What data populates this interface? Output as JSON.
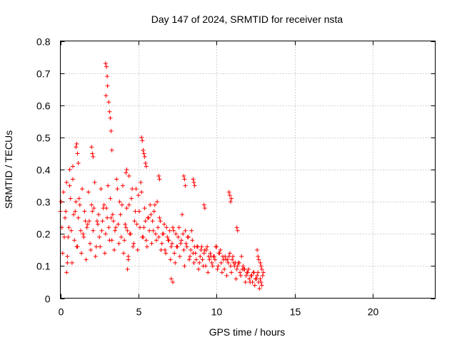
{
  "chart_data": {
    "type": "scatter",
    "title": "Day 147 of 2024, SRMTID for receiver nsta",
    "xlabel": "GPS time / hours",
    "ylabel": "SRMTID / TECUs",
    "xlim": [
      0,
      24
    ],
    "ylim": [
      0,
      0.8
    ],
    "grid": true,
    "marker": "+",
    "marker_color": "#ff0000",
    "x_ticks": [
      0,
      5,
      10,
      15,
      20
    ],
    "x_tick_labels": [
      "0",
      "5",
      "10",
      "15",
      "20"
    ],
    "y_ticks": [
      0,
      0.1,
      0.2,
      0.3,
      0.4,
      0.5,
      0.6,
      0.7,
      0.8
    ],
    "y_tick_labels": [
      "0",
      "0.1",
      "0.2",
      "0.3",
      "0.4",
      "0.5",
      "0.6",
      "0.7",
      "0.8"
    ],
    "series": [
      {
        "name": "SRMTID",
        "x": [
          0.0,
          0.2,
          0.4,
          0.6,
          0.8,
          1.0,
          1.2,
          1.4,
          1.6,
          1.8,
          2.0,
          2.2,
          2.4,
          2.6,
          2.8,
          3.0,
          3.2,
          3.4,
          3.6,
          3.8,
          4.0,
          4.2,
          4.4,
          4.6,
          4.8,
          5.0,
          5.2,
          5.4,
          5.6,
          5.8,
          6.0,
          6.2,
          6.4,
          6.6,
          6.8,
          7.0,
          7.2,
          7.4,
          7.6,
          7.8,
          8.0,
          8.2,
          8.4,
          8.6,
          8.8,
          9.0,
          9.2,
          9.4,
          9.6,
          9.8,
          10.0,
          10.2,
          10.4,
          10.6,
          10.8,
          11.0,
          11.2,
          11.4,
          11.6,
          11.8,
          12.0,
          12.2,
          12.4,
          12.6,
          12.8,
          13.0,
          0.1,
          0.3,
          0.5,
          0.7,
          0.9,
          1.1,
          1.3,
          1.5,
          1.7,
          1.9,
          2.1,
          2.3,
          2.5,
          2.7,
          2.9,
          3.1,
          3.3,
          3.5,
          3.7,
          3.9,
          4.1,
          4.3,
          4.5,
          4.7,
          4.9,
          5.1,
          5.3,
          5.5,
          5.7,
          5.9,
          6.1,
          6.3,
          6.5,
          6.7,
          6.9,
          7.1,
          7.3,
          7.5,
          7.7,
          7.9,
          8.1,
          8.3,
          8.5,
          8.7,
          8.9,
          9.1,
          9.3,
          9.5,
          9.7,
          9.9,
          10.1,
          10.3,
          10.5,
          10.7,
          10.9,
          11.1,
          11.3,
          11.5,
          11.7,
          11.9,
          12.1,
          12.3,
          12.5,
          12.7,
          12.9,
          0.05,
          0.35,
          0.65,
          0.95,
          1.25,
          1.55,
          1.85,
          2.15,
          2.45,
          2.75,
          3.05,
          3.35,
          3.65,
          3.95,
          4.25,
          4.55,
          4.85,
          5.15,
          5.45,
          5.75,
          6.05,
          6.35,
          6.65,
          6.95,
          7.25,
          7.55,
          7.85,
          8.15,
          8.45,
          8.75,
          9.05,
          9.35,
          9.65,
          9.95,
          10.25,
          10.55,
          10.85,
          11.15,
          11.45,
          11.75,
          12.05,
          12.35,
          12.65,
          12.95,
          0.15,
          0.45,
          0.75,
          1.05,
          1.35,
          1.65,
          1.95,
          2.25,
          2.55,
          2.85,
          3.15,
          3.45,
          3.75,
          4.05,
          4.35,
          4.65,
          4.95,
          5.25,
          5.55,
          5.85,
          6.15,
          6.45,
          6.75,
          7.05,
          7.35,
          7.65,
          7.95,
          8.25,
          8.55,
          8.85,
          9.15,
          9.45,
          9.75,
          10.05,
          10.35,
          10.65,
          10.95,
          11.25,
          11.55,
          11.85,
          12.15,
          12.45,
          12.75,
          0.25,
          0.55,
          0.85,
          1.15,
          1.45,
          1.75,
          2.05,
          2.35,
          2.65,
          2.95,
          3.25,
          3.55,
          3.85,
          4.15,
          4.45,
          4.75,
          5.05,
          5.35,
          5.65,
          5.95,
          6.25,
          6.55,
          6.85,
          7.15,
          7.45,
          7.75,
          8.05,
          8.35,
          8.65,
          8.95,
          9.25,
          9.55,
          9.85,
          10.15,
          10.45,
          10.75,
          11.05,
          11.35,
          11.65,
          11.95,
          12.25,
          12.55,
          12.85,
          2.9,
          2.95,
          3.0,
          2.92,
          3.02,
          3.1,
          3.15,
          3.2,
          3.25,
          3.3,
          1.0,
          1.05,
          1.1,
          1.15,
          5.2,
          5.25,
          5.3,
          5.35,
          5.4,
          5.45,
          5.5,
          10.8,
          10.85,
          10.9,
          10.95,
          8.5,
          8.55,
          8.6,
          7.9,
          7.95,
          8.0,
          12.6,
          12.65,
          12.7,
          12.8,
          12.85,
          12.9,
          0.6,
          0.8,
          2.0,
          2.05,
          2.1,
          4.2,
          4.25,
          4.4,
          6.3,
          6.35,
          9.2,
          9.25,
          11.3,
          11.35,
          0.4,
          0.45,
          4.3,
          4.35,
          7.1,
          7.2
        ],
        "y": [
          0.27,
          0.33,
          0.36,
          0.35,
          0.37,
          0.3,
          0.31,
          0.34,
          0.24,
          0.33,
          0.29,
          0.36,
          0.23,
          0.34,
          0.29,
          0.25,
          0.31,
          0.24,
          0.37,
          0.3,
          0.35,
          0.22,
          0.29,
          0.34,
          0.27,
          0.32,
          0.33,
          0.28,
          0.25,
          0.26,
          0.27,
          0.3,
          0.24,
          0.2,
          0.22,
          0.21,
          0.22,
          0.2,
          0.22,
          0.26,
          0.21,
          0.19,
          0.21,
          0.16,
          0.16,
          0.15,
          0.14,
          0.16,
          0.14,
          0.13,
          0.16,
          0.14,
          0.13,
          0.12,
          0.13,
          0.12,
          0.11,
          0.11,
          0.13,
          0.09,
          0.08,
          0.07,
          0.08,
          0.07,
          0.06,
          0.08,
          0.22,
          0.25,
          0.19,
          0.21,
          0.18,
          0.16,
          0.21,
          0.19,
          0.22,
          0.17,
          0.21,
          0.16,
          0.19,
          0.24,
          0.2,
          0.22,
          0.18,
          0.21,
          0.23,
          0.19,
          0.18,
          0.21,
          0.2,
          0.17,
          0.23,
          0.22,
          0.19,
          0.18,
          0.21,
          0.24,
          0.2,
          0.19,
          0.17,
          0.15,
          0.18,
          0.16,
          0.14,
          0.16,
          0.17,
          0.15,
          0.16,
          0.13,
          0.14,
          0.12,
          0.11,
          0.12,
          0.1,
          0.13,
          0.11,
          0.12,
          0.1,
          0.11,
          0.09,
          0.12,
          0.1,
          0.11,
          0.09,
          0.08,
          0.1,
          0.07,
          0.06,
          0.05,
          0.06,
          0.05,
          0.04,
          0.3,
          0.27,
          0.31,
          0.27,
          0.29,
          0.27,
          0.24,
          0.28,
          0.26,
          0.28,
          0.35,
          0.26,
          0.34,
          0.29,
          0.28,
          0.31,
          0.34,
          0.36,
          0.24,
          0.29,
          0.29,
          0.25,
          0.23,
          0.18,
          0.21,
          0.19,
          0.2,
          0.19,
          0.18,
          0.16,
          0.16,
          0.15,
          0.13,
          0.16,
          0.15,
          0.13,
          0.14,
          0.1,
          0.11,
          0.09,
          0.09,
          0.08,
          0.08,
          0.07,
          0.14,
          0.13,
          0.11,
          0.16,
          0.14,
          0.12,
          0.15,
          0.13,
          0.16,
          0.14,
          0.18,
          0.15,
          0.17,
          0.14,
          0.13,
          0.16,
          0.15,
          0.19,
          0.16,
          0.17,
          0.18,
          0.15,
          0.14,
          0.12,
          0.11,
          0.13,
          0.1,
          0.12,
          0.11,
          0.09,
          0.1,
          0.08,
          0.1,
          0.09,
          0.08,
          0.07,
          0.08,
          0.06,
          0.07,
          0.05,
          0.05,
          0.04,
          0.03,
          0.19,
          0.22,
          0.26,
          0.25,
          0.2,
          0.23,
          0.27,
          0.24,
          0.21,
          0.28,
          0.25,
          0.22,
          0.26,
          0.23,
          0.2,
          0.24,
          0.27,
          0.22,
          0.25,
          0.21,
          0.22,
          0.2,
          0.19,
          0.17,
          0.16,
          0.18,
          0.17,
          0.15,
          0.14,
          0.13,
          0.15,
          0.12,
          0.13,
          0.14,
          0.12,
          0.11,
          0.13,
          0.1,
          0.09,
          0.08,
          0.07,
          0.06,
          0.05,
          0.73,
          0.72,
          0.69,
          0.63,
          0.66,
          0.61,
          0.58,
          0.56,
          0.52,
          0.46,
          0.47,
          0.48,
          0.45,
          0.42,
          0.5,
          0.49,
          0.46,
          0.45,
          0.44,
          0.42,
          0.41,
          0.33,
          0.32,
          0.3,
          0.31,
          0.37,
          0.36,
          0.35,
          0.38,
          0.37,
          0.35,
          0.15,
          0.13,
          0.12,
          0.11,
          0.1,
          0.09,
          0.4,
          0.41,
          0.47,
          0.45,
          0.44,
          0.39,
          0.4,
          0.38,
          0.38,
          0.37,
          0.29,
          0.28,
          0.22,
          0.21,
          0.08,
          0.11,
          0.09,
          0.12,
          0.06,
          0.05
        ]
      }
    ]
  }
}
